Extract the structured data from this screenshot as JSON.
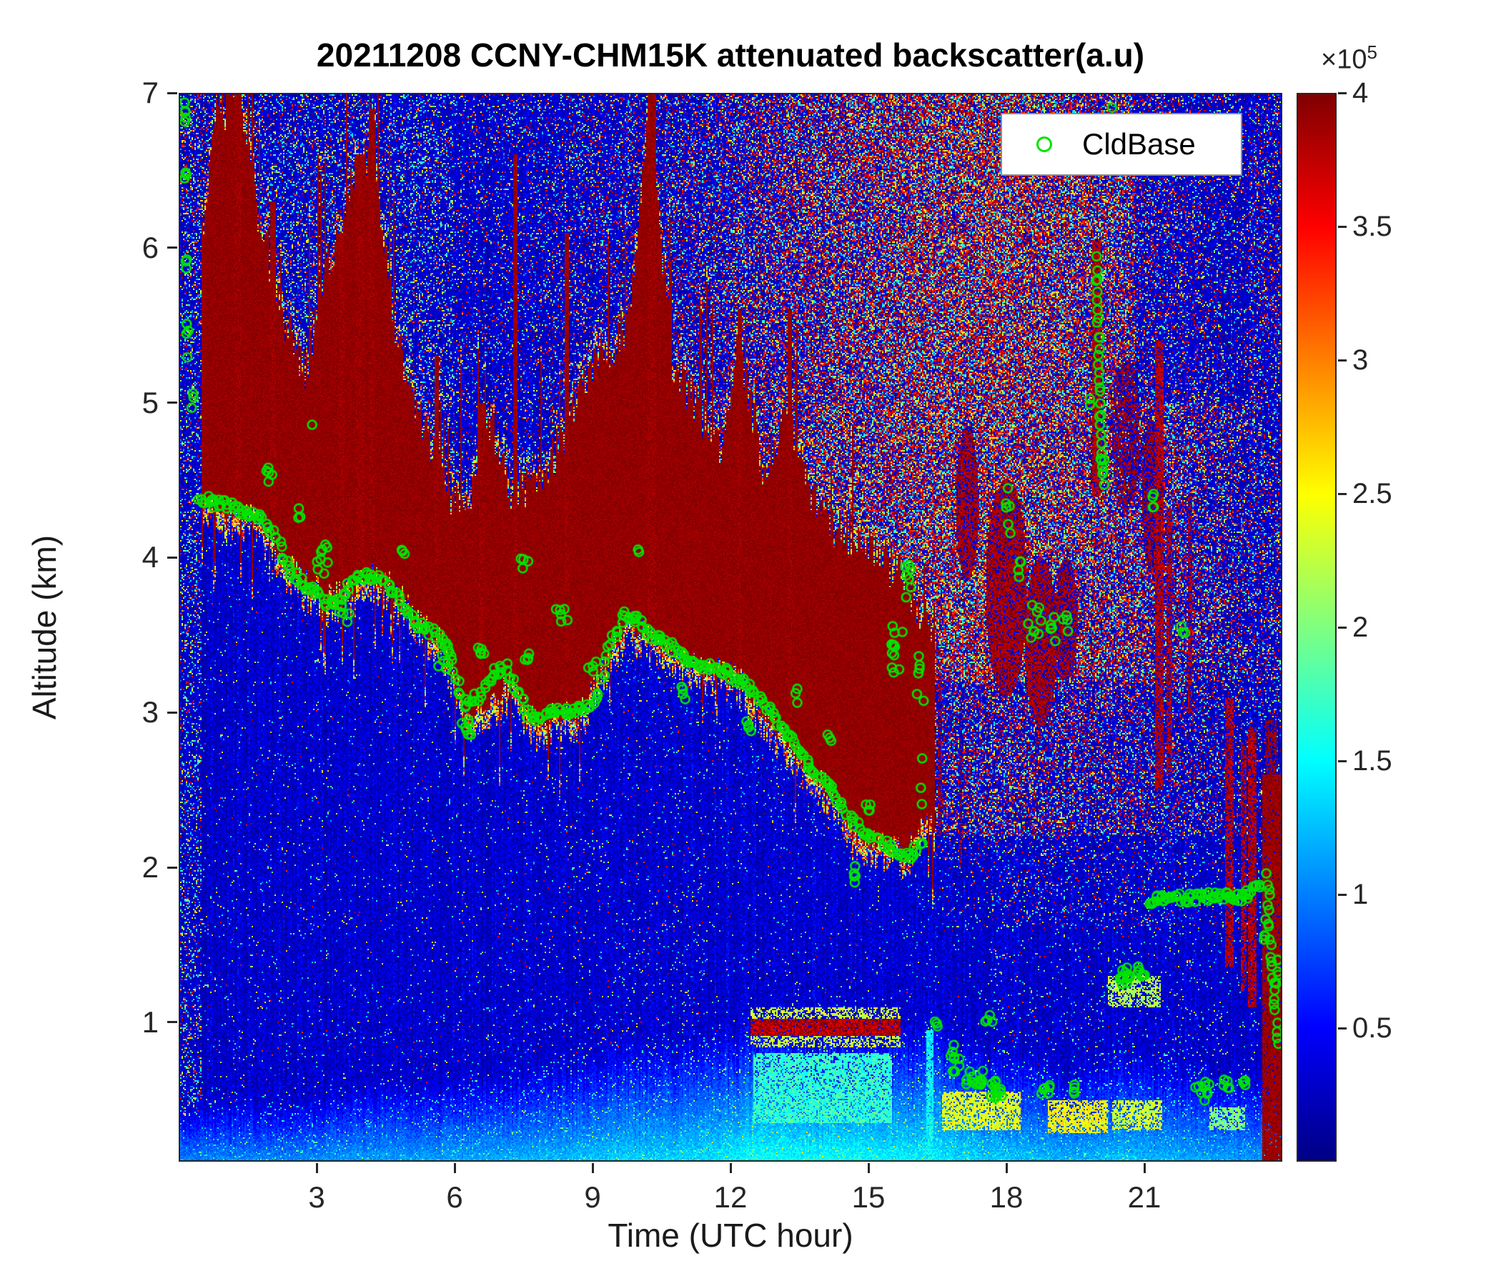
{
  "chart_data": {
    "type": "heatmap",
    "title": "20211208 CCNY-CHM15K attenuated backscatter(a.u)",
    "xlabel": "Time (UTC hour)",
    "ylabel": "Altitude (km)",
    "xlim": [
      0,
      24
    ],
    "ylim": [
      0.1,
      7
    ],
    "xticks": {
      "values": [
        3,
        6,
        9,
        12,
        15,
        18,
        21
      ],
      "labels": [
        "3",
        "6",
        "9",
        "12",
        "15",
        "18",
        "21"
      ]
    },
    "yticks": {
      "values": [
        1,
        2,
        3,
        4,
        5,
        6,
        7
      ],
      "labels": [
        "1",
        "2",
        "3",
        "4",
        "5",
        "6",
        "7"
      ]
    },
    "colorbar": {
      "colormap": "jet",
      "range": [
        0,
        400000
      ],
      "scale_text": "×10",
      "scale_exp": "5",
      "ticks": {
        "values": [
          0.5,
          1,
          1.5,
          2,
          2.5,
          3,
          3.5,
          4
        ],
        "labels": [
          "0.5",
          "1",
          "1.5",
          "2",
          "2.5",
          "3",
          "3.5",
          "4"
        ]
      }
    },
    "legend": {
      "label": "CldBase",
      "marker": "circle",
      "marker_color": "#00e400"
    },
    "field": {
      "value_units": "1e5 a.u.",
      "cloud_start_hour": 0.5,
      "cloud_end_hour": 16.45,
      "cloud_t0": 0.25,
      "cloud_dt": 0.5,
      "cloud_base_km": [
        4.35,
        4.35,
        4.3,
        4.25,
        4.0,
        3.85,
        3.75,
        3.8,
        3.9,
        3.8,
        3.6,
        3.45,
        3.0,
        3.05,
        3.2,
        2.95,
        3.0,
        3.0,
        3.3,
        3.6,
        3.5,
        3.4,
        3.3,
        3.3,
        3.2,
        3.0,
        2.85,
        2.6,
        2.5,
        2.2,
        2.2,
        2.1,
        2.3
      ],
      "cloud_top_km": [
        5.3,
        6.8,
        7.0,
        6.2,
        5.6,
        5.2,
        5.9,
        6.4,
        6.6,
        5.4,
        4.9,
        4.5,
        4.3,
        4.9,
        4.4,
        4.5,
        4.7,
        5.1,
        5.3,
        5.5,
        6.9,
        5.2,
        5.0,
        4.7,
        5.3,
        4.5,
        5.0,
        4.4,
        4.2,
        4.1,
        4.0,
        3.9,
        3.6
      ],
      "hour_t0": 0.5,
      "hour_dt": 1,
      "surface_top_km": [
        0.45,
        0.5,
        0.5,
        0.55,
        0.6,
        0.6,
        0.65,
        0.7,
        0.75,
        0.8,
        0.85,
        0.9,
        0.95,
        0.9,
        0.9,
        0.9,
        0.95,
        0.8,
        0.75,
        0.7,
        0.8,
        0.75,
        0.7,
        0.65
      ],
      "surface_value": [
        1.2,
        1.2,
        1.2,
        1.25,
        1.25,
        1.25,
        1.3,
        1.3,
        1.35,
        1.4,
        1.4,
        1.45,
        1.6,
        1.6,
        1.6,
        1.55,
        1.5,
        1.4,
        1.35,
        1.3,
        1.35,
        1.3,
        1.25,
        1.2
      ],
      "speckle_red": [
        0.05,
        0.06,
        0.06,
        0.06,
        0.06,
        0.05,
        0.05,
        0.06,
        0.08,
        0.1,
        0.13,
        0.16,
        0.22,
        0.28,
        0.32,
        0.35,
        0.38,
        0.4,
        0.38,
        0.35,
        0.32,
        0.28,
        0.2,
        0.12
      ],
      "spikes": [
        {
          "t": 1.28,
          "w": 0.08,
          "z1": 7.0
        },
        {
          "t": 2.05,
          "w": 0.05,
          "z1": 6.3
        },
        {
          "t": 3.55,
          "w": 0.06,
          "z1": 6.1
        },
        {
          "t": 3.95,
          "w": 0.1,
          "z1": 6.6
        },
        {
          "t": 4.2,
          "w": 0.07,
          "z1": 6.9
        },
        {
          "t": 5.6,
          "w": 0.05,
          "z1": 5.3
        },
        {
          "t": 6.6,
          "w": 0.06,
          "z1": 5.0
        },
        {
          "t": 7.32,
          "w": 0.06,
          "z1": 6.6
        },
        {
          "t": 8.45,
          "w": 0.05,
          "z1": 6.1
        },
        {
          "t": 10.28,
          "w": 0.09,
          "z1": 7.0
        },
        {
          "t": 12.2,
          "w": 0.06,
          "z1": 5.6
        },
        {
          "t": 13.3,
          "w": 0.05,
          "z1": 5.6
        }
      ],
      "streaks": [
        {
          "t": 19.97,
          "w": 0.09,
          "z0": 4.4,
          "z1": 6.05,
          "p": 0.85
        },
        {
          "t": 21.33,
          "w": 0.09,
          "z0": 2.5,
          "z1": 5.4,
          "p": 0.8
        },
        {
          "t": 21.55,
          "w": 0.07,
          "z0": 2.6,
          "z1": 4.3,
          "p": 0.7
        },
        {
          "t": 22.0,
          "w": 0.05,
          "z0": 3.0,
          "z1": 4.4,
          "p": 0.6
        },
        {
          "t": 22.85,
          "w": 0.08,
          "z0": 1.35,
          "z1": 3.1,
          "p": 0.75
        },
        {
          "t": 23.15,
          "w": 0.06,
          "z0": 1.2,
          "z1": 2.8,
          "p": 0.7
        },
        {
          "t": 23.35,
          "w": 0.09,
          "z0": 1.1,
          "z1": 2.9,
          "p": 0.8
        },
        {
          "t": 16.55,
          "w": 0.05,
          "z0": 2.2,
          "z1": 3.4,
          "p": 0.5
        },
        {
          "t": 17.0,
          "w": 0.04,
          "z0": 2.0,
          "z1": 3.0,
          "p": 0.4
        }
      ],
      "blobs": [
        {
          "t": 17.15,
          "z": 4.35,
          "rt": 0.25,
          "rz": 0.5,
          "p": 0.7
        },
        {
          "t": 18.0,
          "z": 3.8,
          "rt": 0.45,
          "rz": 0.7,
          "p": 0.75
        },
        {
          "t": 18.75,
          "z": 3.45,
          "rt": 0.35,
          "rz": 0.55,
          "p": 0.75
        },
        {
          "t": 19.3,
          "z": 3.6,
          "rt": 0.25,
          "rz": 0.4,
          "p": 0.6
        },
        {
          "t": 20.6,
          "z": 4.8,
          "rt": 0.3,
          "rz": 0.5,
          "p": 0.5
        },
        {
          "t": 21.15,
          "z": 4.4,
          "rt": 0.2,
          "rz": 0.5,
          "p": 0.55
        }
      ],
      "patches": [
        {
          "t0": 12.45,
          "t1": 15.7,
          "z0": 0.91,
          "z1": 1.02,
          "v": 3.8,
          "p": 0.9
        },
        {
          "t0": 12.45,
          "t1": 15.7,
          "z0": 0.84,
          "z1": 1.1,
          "v": 2.3,
          "p": 0.5
        },
        {
          "t0": 12.5,
          "t1": 15.5,
          "z0": 0.35,
          "z1": 0.8,
          "v": 1.7,
          "p": 0.8
        },
        {
          "t0": 16.6,
          "t1": 18.3,
          "z0": 0.3,
          "z1": 0.55,
          "v": 2.4,
          "p": 0.75
        },
        {
          "t0": 18.9,
          "t1": 20.2,
          "z0": 0.28,
          "z1": 0.5,
          "v": 2.5,
          "p": 0.75
        },
        {
          "t0": 20.3,
          "t1": 21.4,
          "z0": 0.3,
          "z1": 0.5,
          "v": 2.3,
          "p": 0.7
        },
        {
          "t0": 22.4,
          "t1": 23.2,
          "z0": 0.3,
          "z1": 0.45,
          "v": 2.0,
          "p": 0.7
        },
        {
          "t0": 20.2,
          "t1": 21.35,
          "z0": 1.1,
          "z1": 1.3,
          "v": 2.2,
          "p": 0.6
        },
        {
          "t0": 16.26,
          "t1": 16.4,
          "z0": 0.1,
          "z1": 0.95,
          "v": 1.5,
          "p": 0.9
        }
      ],
      "solids": [
        {
          "t0": 23.55,
          "t1": 24.01,
          "z0": 0.1,
          "z1": 2.6,
          "p": 0.95
        },
        {
          "t0": 23.62,
          "t1": 23.88,
          "z0": 2.6,
          "z1": 2.95,
          "p": 0.6
        }
      ]
    },
    "cldbase": {
      "main_lines": [
        {
          "step": 0.045,
          "jitter": 0.05,
          "pts": [
            [
              0.45,
              4.4
            ],
            [
              0.7,
              4.35
            ],
            [
              1.0,
              4.35
            ],
            [
              1.4,
              4.3
            ],
            [
              1.8,
              4.25
            ],
            [
              2.1,
              4.15
            ],
            [
              2.35,
              3.95
            ],
            [
              2.6,
              3.85
            ],
            [
              2.9,
              3.8
            ],
            [
              3.2,
              3.7
            ],
            [
              3.5,
              3.72
            ],
            [
              3.8,
              3.85
            ],
            [
              4.1,
              3.9
            ],
            [
              4.4,
              3.85
            ],
            [
              4.7,
              3.78
            ],
            [
              5.0,
              3.62
            ],
            [
              5.3,
              3.55
            ],
            [
              5.6,
              3.5
            ],
            [
              5.9,
              3.38
            ],
            [
              6.2,
              3.05
            ],
            [
              6.5,
              3.1
            ],
            [
              6.8,
              3.25
            ],
            [
              7.1,
              3.3
            ],
            [
              7.4,
              3.1
            ],
            [
              7.7,
              2.95
            ],
            [
              8.0,
              3.0
            ],
            [
              8.4,
              3.0
            ],
            [
              8.8,
              3.02
            ],
            [
              9.1,
              3.1
            ],
            [
              9.4,
              3.45
            ],
            [
              9.7,
              3.63
            ],
            [
              10.0,
              3.6
            ],
            [
              10.3,
              3.5
            ],
            [
              10.6,
              3.45
            ],
            [
              11.0,
              3.35
            ],
            [
              11.4,
              3.3
            ],
            [
              11.8,
              3.28
            ],
            [
              12.2,
              3.2
            ],
            [
              12.6,
              3.1
            ],
            [
              13.0,
              2.95
            ],
            [
              13.3,
              2.85
            ],
            [
              13.6,
              2.7
            ],
            [
              13.9,
              2.6
            ],
            [
              14.2,
              2.5
            ],
            [
              14.5,
              2.35
            ],
            [
              14.8,
              2.25
            ],
            [
              15.1,
              2.2
            ],
            [
              15.5,
              2.12
            ],
            [
              15.9,
              2.08
            ],
            [
              16.2,
              2.15
            ]
          ]
        },
        {
          "step": 0.035,
          "jitter": 0.04,
          "pts": [
            [
              21.1,
              1.78
            ],
            [
              21.6,
              1.8
            ],
            [
              22.1,
              1.8
            ],
            [
              22.6,
              1.82
            ],
            [
              23.0,
              1.8
            ],
            [
              23.3,
              1.83
            ],
            [
              23.55,
              1.9
            ]
          ]
        },
        {
          "step": 0.012,
          "jitter": 0.03,
          "pts": [
            [
              19.96,
              5.92
            ],
            [
              19.99,
              5.55
            ],
            [
              20.02,
              5.2
            ],
            [
              20.05,
              4.85
            ],
            [
              20.08,
              4.55
            ]
          ]
        },
        {
          "step": 0.015,
          "jitter": 0.03,
          "pts": [
            [
              23.68,
              1.95
            ],
            [
              23.74,
              1.55
            ],
            [
              23.8,
              1.25
            ],
            [
              23.87,
              1.0
            ],
            [
              23.93,
              0.83
            ]
          ]
        }
      ],
      "clusters": [
        [
          0.13,
          6.85,
          5,
          0.03,
          0.12
        ],
        [
          0.15,
          6.4,
          4,
          0.03,
          0.2
        ],
        [
          0.17,
          5.95,
          3,
          0.03,
          0.15
        ],
        [
          0.2,
          5.4,
          4,
          0.04,
          0.15
        ],
        [
          0.3,
          5.02,
          3,
          0.05,
          0.08
        ],
        [
          1.95,
          4.52,
          5,
          0.12,
          0.1
        ],
        [
          2.6,
          4.3,
          3,
          0.15,
          0.12
        ],
        [
          2.9,
          4.85,
          1,
          0.01,
          0.01
        ],
        [
          3.1,
          4.0,
          9,
          0.3,
          0.18
        ],
        [
          3.6,
          3.6,
          5,
          0.2,
          0.1
        ],
        [
          4.9,
          4.05,
          3,
          0.08,
          0.06
        ],
        [
          5.8,
          3.35,
          8,
          0.25,
          0.2
        ],
        [
          6.3,
          2.9,
          7,
          0.2,
          0.2
        ],
        [
          6.6,
          3.35,
          5,
          0.15,
          0.15
        ],
        [
          7.5,
          4.0,
          4,
          0.12,
          0.08
        ],
        [
          7.6,
          3.35,
          4,
          0.1,
          0.1
        ],
        [
          8.3,
          3.6,
          6,
          0.2,
          0.12
        ],
        [
          9.0,
          3.3,
          4,
          0.15,
          0.1
        ],
        [
          10.0,
          4.05,
          2,
          0.05,
          0.05
        ],
        [
          10.9,
          3.15,
          4,
          0.12,
          0.08
        ],
        [
          12.4,
          2.9,
          4,
          0.1,
          0.12
        ],
        [
          13.4,
          3.1,
          3,
          0.1,
          0.08
        ],
        [
          14.15,
          2.85,
          3,
          0.06,
          0.1
        ],
        [
          14.7,
          1.98,
          5,
          0.06,
          0.12
        ],
        [
          15.0,
          2.4,
          4,
          0.1,
          0.1
        ],
        [
          15.55,
          3.4,
          12,
          0.25,
          0.22
        ],
        [
          15.85,
          3.85,
          7,
          0.15,
          0.18
        ],
        [
          16.1,
          3.25,
          6,
          0.12,
          0.18
        ],
        [
          16.15,
          2.6,
          3,
          0.06,
          0.25
        ],
        [
          16.5,
          1.0,
          3,
          0.08,
          0.1
        ],
        [
          16.9,
          0.78,
          10,
          0.2,
          0.13
        ],
        [
          17.3,
          0.62,
          14,
          0.25,
          0.1
        ],
        [
          17.6,
          1.0,
          4,
          0.12,
          0.07
        ],
        [
          17.75,
          0.56,
          12,
          0.25,
          0.09
        ],
        [
          18.05,
          4.3,
          6,
          0.08,
          0.22
        ],
        [
          18.3,
          3.95,
          4,
          0.08,
          0.12
        ],
        [
          18.6,
          3.6,
          9,
          0.18,
          0.22
        ],
        [
          18.9,
          0.6,
          6,
          0.18,
          0.08
        ],
        [
          19.0,
          3.5,
          5,
          0.12,
          0.15
        ],
        [
          19.3,
          3.62,
          4,
          0.08,
          0.12
        ],
        [
          19.5,
          0.55,
          4,
          0.12,
          0.06
        ],
        [
          19.8,
          5.0,
          2,
          0.03,
          0.1
        ],
        [
          20.1,
          4.55,
          5,
          0.06,
          0.12
        ],
        [
          20.3,
          6.9,
          1,
          0.01,
          0.01
        ],
        [
          20.55,
          1.3,
          12,
          0.18,
          0.08
        ],
        [
          20.95,
          1.32,
          6,
          0.12,
          0.06
        ],
        [
          21.2,
          4.35,
          4,
          0.08,
          0.15
        ],
        [
          21.85,
          3.5,
          3,
          0.06,
          0.2
        ],
        [
          22.25,
          0.56,
          9,
          0.22,
          0.08
        ],
        [
          22.8,
          0.6,
          5,
          0.12,
          0.06
        ],
        [
          23.15,
          0.63,
          4,
          0.08,
          0.05
        ],
        [
          23.6,
          1.55,
          4,
          0.05,
          0.15
        ],
        [
          23.9,
          1.3,
          5,
          0.04,
          0.25
        ]
      ]
    }
  }
}
